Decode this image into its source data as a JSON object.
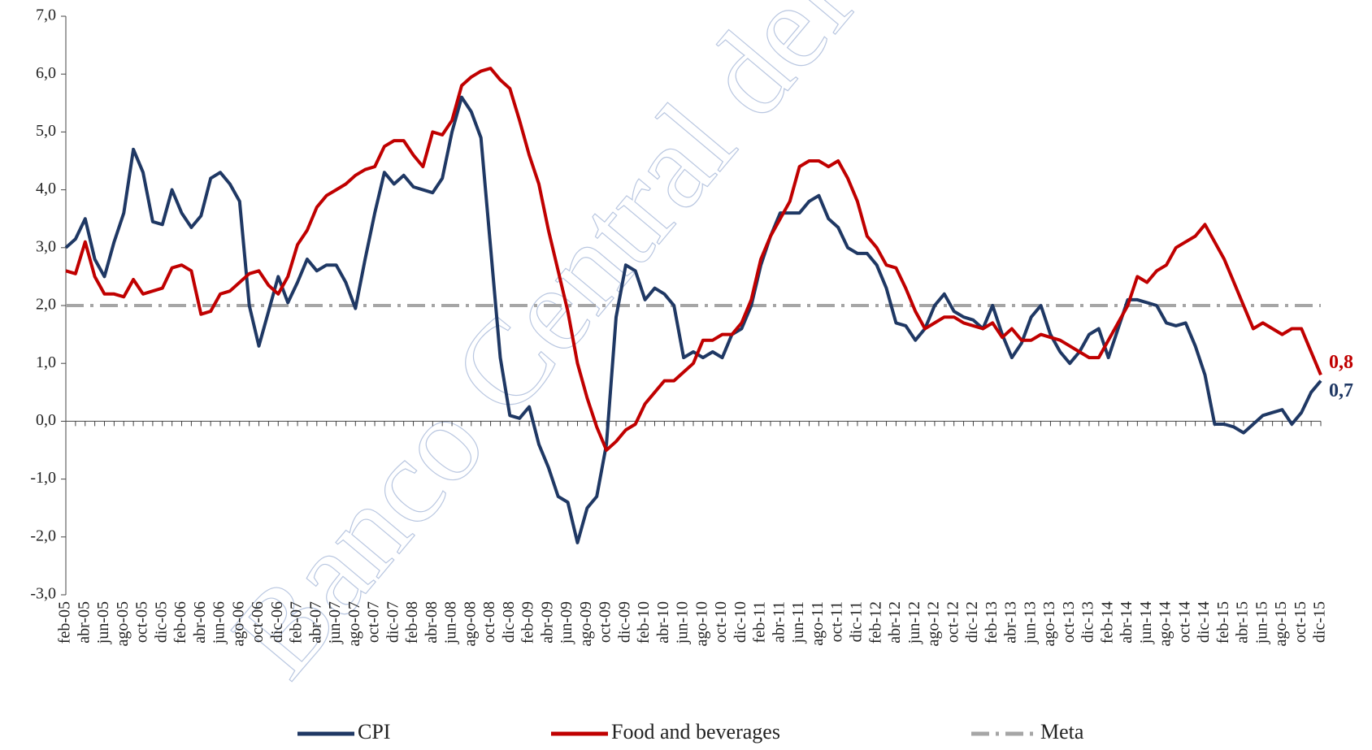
{
  "chart_data": {
    "type": "line",
    "watermark": "Banco Central del Paraguay",
    "categories": [
      "feb-05",
      null,
      "abr-05",
      null,
      "jun-05",
      null,
      "ago-05",
      null,
      "oct-05",
      null,
      "dic-05",
      null,
      "feb-06",
      null,
      "abr-06",
      null,
      "jun-06",
      null,
      "ago-06",
      null,
      "oct-06",
      null,
      "dic-06",
      null,
      "feb-07",
      null,
      "abr-07",
      null,
      "jun-07",
      null,
      "ago-07",
      null,
      "oct-07",
      null,
      "dic-07",
      null,
      "feb-08",
      null,
      "abr-08",
      null,
      "jun-08",
      null,
      "ago-08",
      null,
      "oct-08",
      null,
      "dic-08",
      null,
      "feb-09",
      null,
      "abr-09",
      null,
      "jun-09",
      null,
      "ago-09",
      null,
      "oct-09",
      null,
      "dic-09",
      null,
      "feb-10",
      null,
      "abr-10",
      null,
      "jun-10",
      null,
      "ago-10",
      null,
      "oct-10",
      null,
      "dic-10",
      null,
      "feb-11",
      null,
      "abr-11",
      null,
      "jun-11",
      null,
      "ago-11",
      null,
      "oct-11",
      null,
      "dic-11",
      null,
      "feb-12",
      null,
      "abr-12",
      null,
      "jun-12",
      null,
      "ago-12",
      null,
      "oct-12",
      null,
      "dic-12",
      null,
      "feb-13",
      null,
      "abr-13",
      null,
      "jun-13",
      null,
      "ago-13",
      null,
      "oct-13",
      null,
      "dic-13",
      null,
      "feb-14",
      null,
      "abr-14",
      null,
      "jun-14",
      null,
      "ago-14",
      null,
      "oct-14",
      null,
      "dic-14",
      null,
      "feb-15",
      null,
      "abr-15",
      null,
      "jun-15",
      null,
      "ago-15",
      null,
      "oct-15",
      null,
      "dic-15"
    ],
    "series": [
      {
        "name": "CPI",
        "color": "#1f3864",
        "end_label": "0,7",
        "values": [
          3.0,
          3.15,
          3.5,
          2.8,
          2.5,
          3.1,
          3.6,
          4.7,
          4.3,
          3.45,
          3.4,
          4.0,
          3.6,
          3.35,
          3.55,
          4.2,
          4.3,
          4.1,
          3.8,
          2.0,
          1.3,
          1.9,
          2.5,
          2.05,
          2.4,
          2.8,
          2.6,
          2.7,
          2.7,
          2.4,
          1.95,
          2.8,
          3.6,
          4.3,
          4.1,
          4.25,
          4.05,
          4.0,
          3.95,
          4.2,
          5.0,
          5.6,
          5.35,
          4.9,
          3.0,
          1.1,
          0.1,
          0.05,
          0.25,
          -0.4,
          -0.8,
          -1.3,
          -1.4,
          -2.1,
          -1.5,
          -1.3,
          -0.4,
          1.8,
          2.7,
          2.6,
          2.1,
          2.3,
          2.2,
          2.0,
          1.1,
          1.2,
          1.1,
          1.2,
          1.1,
          1.5,
          1.6,
          2.0,
          2.7,
          3.2,
          3.6,
          3.6,
          3.6,
          3.8,
          3.9,
          3.5,
          3.35,
          3.0,
          2.9,
          2.9,
          2.7,
          2.3,
          1.7,
          1.65,
          1.4,
          1.6,
          2.0,
          2.2,
          1.9,
          1.8,
          1.75,
          1.6,
          2.0,
          1.5,
          1.1,
          1.35,
          1.8,
          2.0,
          1.5,
          1.2,
          1.0,
          1.2,
          1.5,
          1.6,
          1.1,
          1.6,
          2.1,
          2.1,
          2.05,
          2.0,
          1.7,
          1.65,
          1.7,
          1.3,
          0.8,
          -0.05,
          -0.05,
          -0.1,
          -0.2,
          -0.05,
          0.1,
          0.15,
          0.2,
          -0.05,
          0.15,
          0.5,
          0.7
        ]
      },
      {
        "name": "Food and beverages",
        "color": "#c00000",
        "end_label": "0,8",
        "values": [
          2.6,
          2.55,
          3.1,
          2.5,
          2.2,
          2.2,
          2.15,
          2.45,
          2.2,
          2.25,
          2.3,
          2.65,
          2.7,
          2.6,
          1.85,
          1.9,
          2.2,
          2.25,
          2.4,
          2.55,
          2.6,
          2.35,
          2.2,
          2.5,
          3.05,
          3.3,
          3.7,
          3.9,
          4.0,
          4.1,
          4.25,
          4.35,
          4.4,
          4.75,
          4.85,
          4.85,
          4.6,
          4.4,
          5.0,
          4.95,
          5.2,
          5.8,
          5.95,
          6.05,
          6.1,
          5.9,
          5.75,
          5.2,
          4.6,
          4.1,
          3.3,
          2.6,
          1.9,
          1.0,
          0.4,
          -0.1,
          -0.5,
          -0.35,
          -0.15,
          -0.05,
          0.3,
          0.5,
          0.7,
          0.7,
          0.85,
          1.0,
          1.4,
          1.4,
          1.5,
          1.5,
          1.7,
          2.1,
          2.8,
          3.2,
          3.5,
          3.8,
          4.4,
          4.5,
          4.5,
          4.4,
          4.5,
          4.2,
          3.8,
          3.2,
          3.0,
          2.7,
          2.65,
          2.3,
          1.9,
          1.6,
          1.7,
          1.8,
          1.8,
          1.7,
          1.65,
          1.6,
          1.7,
          1.45,
          1.6,
          1.4,
          1.4,
          1.5,
          1.45,
          1.4,
          1.3,
          1.2,
          1.1,
          1.1,
          1.4,
          1.7,
          2.0,
          2.5,
          2.4,
          2.6,
          2.7,
          3.0,
          3.1,
          3.2,
          3.4,
          3.1,
          2.8,
          2.4,
          2.0,
          1.6,
          1.7,
          1.6,
          1.5,
          1.6,
          1.6,
          1.2,
          0.8
        ]
      }
    ],
    "reference_line": {
      "name": "Meta",
      "value": 2,
      "color": "#a6a6a6"
    },
    "ylim": [
      -3,
      7
    ],
    "yticks": [
      {
        "value": -3,
        "label": "-3,0"
      },
      {
        "value": -2,
        "label": "-2,0"
      },
      {
        "value": -1,
        "label": "-1,0"
      },
      {
        "value": 0,
        "label": "0,0"
      },
      {
        "value": 1,
        "label": "1,0"
      },
      {
        "value": 2,
        "label": "2,0"
      },
      {
        "value": 3,
        "label": "3,0"
      },
      {
        "value": 4,
        "label": "4,0"
      },
      {
        "value": 5,
        "label": "5,0"
      },
      {
        "value": 6,
        "label": "6,0"
      },
      {
        "value": 7,
        "label": "7,0"
      }
    ],
    "legend": "bottom"
  }
}
